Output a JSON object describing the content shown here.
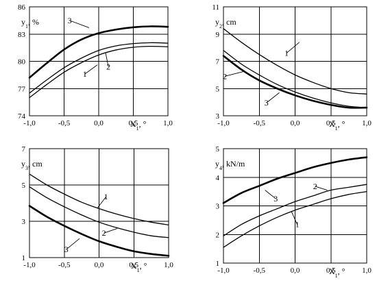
{
  "chart_data": [
    {
      "type": "line",
      "xlabel": "X₁, °",
      "ylabel": "y₁, %",
      "xlim": [
        -1.0,
        1.0
      ],
      "ylim": [
        74,
        86
      ],
      "xticks": [
        "-1,0",
        "-0,5",
        "0,0",
        "0,5",
        "1,0"
      ],
      "yticks": [
        "74",
        "77",
        "80",
        "83",
        "86"
      ],
      "x": [
        -1.0,
        -0.75,
        -0.5,
        -0.25,
        0.0,
        0.25,
        0.5,
        0.75,
        1.0
      ],
      "series": [
        {
          "name": "1",
          "values": [
            76.0,
            77.45,
            78.8,
            79.85,
            80.7,
            81.25,
            81.55,
            81.65,
            81.6
          ],
          "weight": "thin"
        },
        {
          "name": "2",
          "values": [
            76.5,
            77.95,
            79.3,
            80.35,
            81.2,
            81.7,
            81.95,
            82.05,
            82.0
          ],
          "weight": "thin"
        },
        {
          "name": "3",
          "values": [
            78.2,
            79.8,
            81.3,
            82.4,
            83.1,
            83.5,
            83.75,
            83.85,
            83.8
          ],
          "weight": "bold"
        }
      ],
      "labels": [
        {
          "text": "1",
          "x": -0.2,
          "y": 78.6,
          "tx": -0.02,
          "ty": 79.6
        },
        {
          "text": "2",
          "x": 0.14,
          "y": 79.4,
          "tx": 0.1,
          "ty": 80.9
        },
        {
          "text": "3",
          "x": -0.42,
          "y": 84.5,
          "tx": -0.14,
          "ty": 83.7
        }
      ]
    },
    {
      "type": "line",
      "xlabel": "X₁, °",
      "ylabel": "y₂, cm",
      "xlim": [
        -1.0,
        1.0
      ],
      "ylim": [
        3,
        11
      ],
      "xticks": [
        "-1,0",
        "-0,5",
        "0,0",
        "0,5",
        "1,0"
      ],
      "yticks": [
        "3",
        "5",
        "7",
        "9",
        "11"
      ],
      "x": [
        -1.0,
        -0.75,
        -0.5,
        -0.25,
        0.0,
        0.25,
        0.5,
        0.75,
        1.0
      ],
      "series": [
        {
          "name": "1",
          "values": [
            9.4,
            8.4,
            7.5,
            6.7,
            6.0,
            5.45,
            5.0,
            4.7,
            4.6
          ],
          "weight": "thin"
        },
        {
          "name": "2",
          "values": [
            7.8,
            6.8,
            6.0,
            5.3,
            4.75,
            4.3,
            3.95,
            3.7,
            3.6
          ],
          "weight": "thin"
        },
        {
          "name": "3",
          "values": [
            7.4,
            6.4,
            5.6,
            5.0,
            4.5,
            4.1,
            3.8,
            3.6,
            3.6
          ],
          "weight": "bold"
        }
      ],
      "labels": [
        {
          "text": "1",
          "x": -0.12,
          "y": 7.6,
          "tx": 0.06,
          "ty": 8.4
        },
        {
          "text": "2",
          "x": -0.98,
          "y": 5.9,
          "tx": -0.72,
          "ty": 6.25
        },
        {
          "text": "3",
          "x": -0.4,
          "y": 3.95,
          "tx": -0.22,
          "ty": 4.7
        }
      ]
    },
    {
      "type": "line",
      "xlabel": "X₁, °",
      "ylabel": "y₃, cm",
      "xlim": [
        -1.0,
        1.0
      ],
      "ylim": [
        1,
        7
      ],
      "xticks": [
        "-1,0",
        "-0,5",
        "0,0",
        "0,5",
        "1,0"
      ],
      "yticks": [
        "1",
        "3",
        "5",
        "7"
      ],
      "x": [
        -1.0,
        -0.75,
        -0.5,
        -0.25,
        0.0,
        0.25,
        0.5,
        0.75,
        1.0
      ],
      "series": [
        {
          "name": "1",
          "values": [
            5.6,
            5.0,
            4.5,
            4.05,
            3.7,
            3.4,
            3.15,
            2.95,
            2.8
          ],
          "weight": "thin"
        },
        {
          "name": "2",
          "values": [
            4.9,
            4.3,
            3.8,
            3.35,
            2.95,
            2.65,
            2.4,
            2.2,
            2.1
          ],
          "weight": "thin"
        },
        {
          "name": "3",
          "values": [
            3.85,
            3.25,
            2.75,
            2.3,
            1.9,
            1.6,
            1.35,
            1.2,
            1.1
          ],
          "weight": "bold"
        }
      ],
      "labels": [
        {
          "text": "1",
          "x": 0.1,
          "y": 4.35,
          "tx": -0.02,
          "ty": 3.75
        },
        {
          "text": "2",
          "x": 0.07,
          "y": 2.35,
          "tx": 0.26,
          "ty": 2.6
        },
        {
          "text": "3",
          "x": -0.47,
          "y": 1.45,
          "tx": -0.28,
          "ty": 2.05
        }
      ]
    },
    {
      "type": "line",
      "xlabel": "X₁, °",
      "ylabel": "y₄, kN/m",
      "xlim": [
        -1.0,
        1.0
      ],
      "ylim": [
        1,
        5
      ],
      "xticks": [
        "-1,0",
        "-0,5",
        "0,0",
        "0,5",
        "1,0"
      ],
      "yticks": [
        "1",
        "2",
        "3",
        "4",
        "5"
      ],
      "x": [
        -1.0,
        -0.75,
        -0.5,
        -0.25,
        0.0,
        0.25,
        0.5,
        0.75,
        1.0
      ],
      "series": [
        {
          "name": "1",
          "values": [
            1.55,
            1.95,
            2.3,
            2.6,
            2.85,
            3.05,
            3.25,
            3.4,
            3.5
          ],
          "weight": "thin"
        },
        {
          "name": "2",
          "values": [
            1.95,
            2.35,
            2.65,
            2.9,
            3.15,
            3.35,
            3.55,
            3.65,
            3.75
          ],
          "weight": "thin"
        },
        {
          "name": "3",
          "values": [
            3.1,
            3.45,
            3.7,
            3.95,
            4.15,
            4.35,
            4.5,
            4.62,
            4.7
          ],
          "weight": "bold"
        }
      ],
      "labels": [
        {
          "text": "1",
          "x": 0.03,
          "y": 2.35,
          "tx": -0.05,
          "ty": 2.8
        },
        {
          "text": "2",
          "x": 0.28,
          "y": 3.68,
          "tx": 0.45,
          "ty": 3.55
        },
        {
          "text": "3",
          "x": -0.27,
          "y": 3.25,
          "tx": -0.42,
          "ty": 3.55
        }
      ]
    }
  ]
}
